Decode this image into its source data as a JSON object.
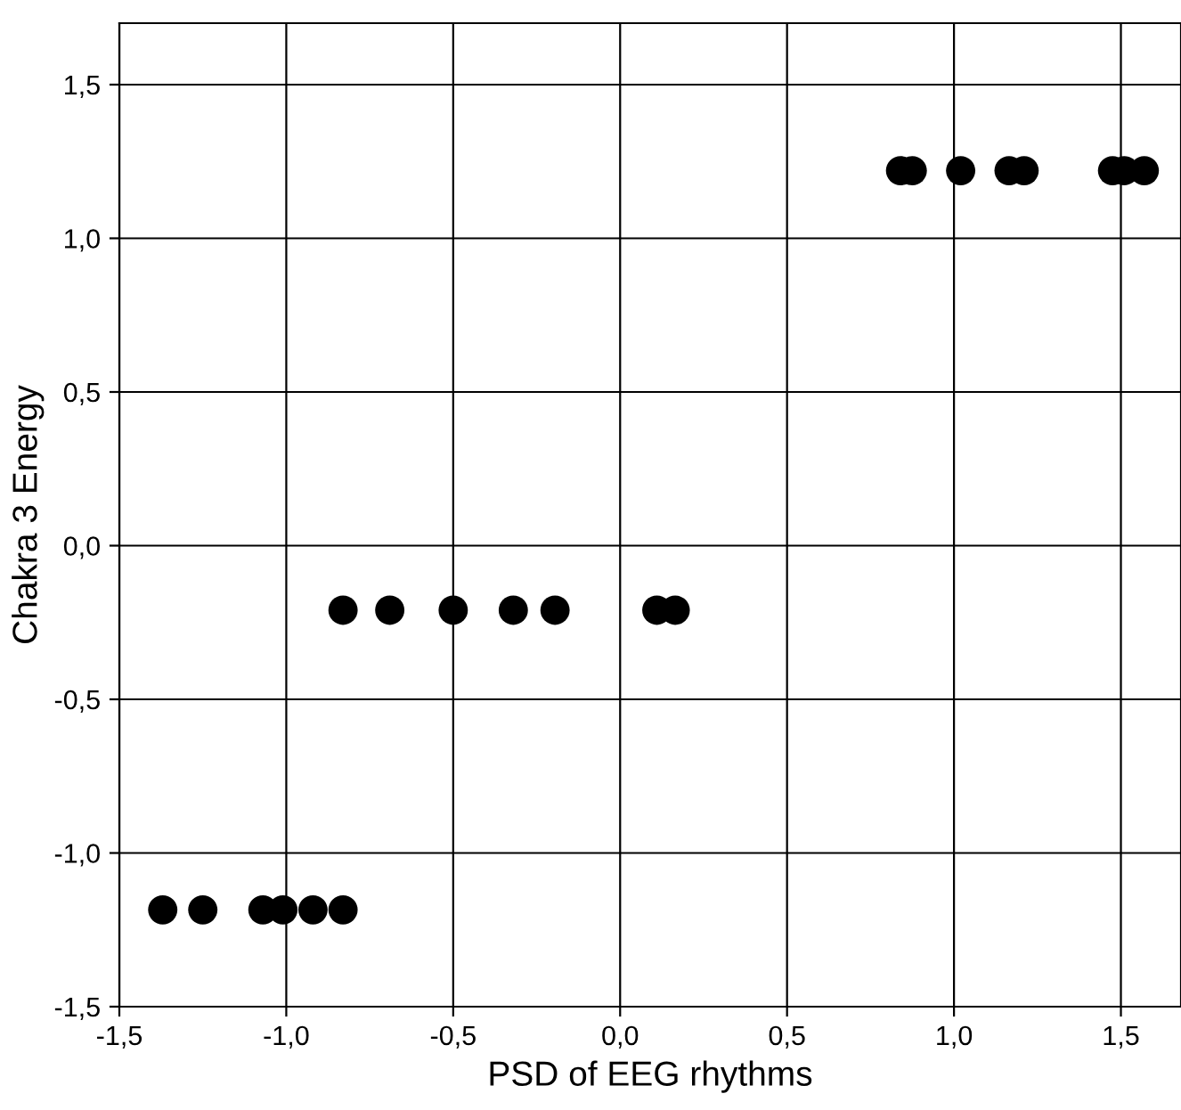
{
  "chart_data": {
    "type": "scatter",
    "xlabel": "PSD of EEG rhythms",
    "ylabel": "Chakra 3 Energy",
    "x": [
      0.84,
      0.875,
      1.02,
      1.165,
      1.21,
      1.475,
      1.51,
      1.57,
      -0.83,
      -0.69,
      -0.5,
      -0.32,
      -0.195,
      0.11,
      0.165,
      -1.37,
      -1.25,
      -1.07,
      -1.01,
      -0.92,
      -0.83
    ],
    "series": [
      {
        "color": "#000000",
        "values": [
          1.22,
          1.22,
          1.22,
          1.22,
          1.22,
          1.22,
          1.22,
          1.22,
          -0.21,
          -0.21,
          -0.21,
          -0.21,
          -0.21,
          -0.21,
          -0.21,
          -1.185,
          -1.185,
          -1.185,
          -1.185,
          -1.185,
          -1.185
        ]
      }
    ],
    "xlim": [
      -1.5,
      1.68
    ],
    "ylim": [
      -1.5,
      1.7
    ],
    "xticks": [
      {
        "value": -1.5,
        "label": "-1,5"
      },
      {
        "value": -1.0,
        "label": "-1,0"
      },
      {
        "value": -0.5,
        "label": "-0,5"
      },
      {
        "value": 0,
        "label": "0,0"
      },
      {
        "value": 0.5,
        "label": "0,5"
      },
      {
        "value": 1.0,
        "label": "1,0"
      },
      {
        "value": 1.5,
        "label": "1,5"
      }
    ],
    "yticks": [
      {
        "value": -1.5,
        "label": "-1,5"
      },
      {
        "value": -1.0,
        "label": "-1,0"
      },
      {
        "value": -0.5,
        "label": "-0,5"
      },
      {
        "value": 0,
        "label": "0,0"
      },
      {
        "value": 0.5,
        "label": "0,5"
      },
      {
        "value": 1.0,
        "label": "1,0"
      },
      {
        "value": 1.5,
        "label": "1,5"
      }
    ],
    "grid": true,
    "marker": "circle"
  }
}
